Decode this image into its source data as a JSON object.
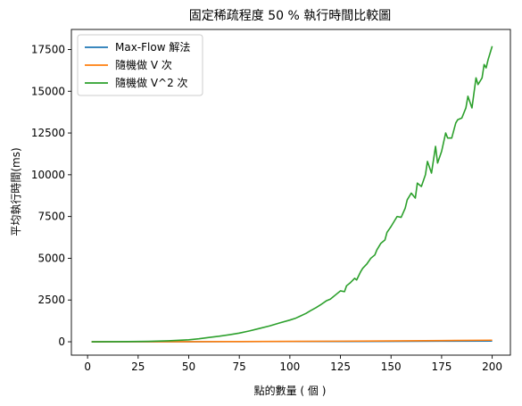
{
  "chart_data": {
    "type": "line",
    "title": "固定稀疏程度 50 % 執行時間比較圖",
    "xlabel": "點的數量 ( 個 )",
    "ylabel": "平均執行時間(ms)",
    "xlim": [
      -8,
      209
    ],
    "ylim": [
      -800,
      18700
    ],
    "xticks": [
      0,
      25,
      50,
      75,
      100,
      125,
      150,
      175,
      200
    ],
    "yticks": [
      0,
      2500,
      5000,
      7500,
      10000,
      12500,
      15000,
      17500
    ],
    "grid": false,
    "legend_position": "top-left",
    "series": [
      {
        "name": "Max-Flow 解法",
        "color": "#1f77b4",
        "x": [
          2,
          25,
          50,
          75,
          100,
          125,
          150,
          175,
          200
        ],
        "y": [
          0,
          2,
          5,
          9,
          14,
          20,
          27,
          35,
          44
        ]
      },
      {
        "name": "隨機做 V 次",
        "color": "#ff7f0e",
        "x": [
          2,
          25,
          50,
          75,
          100,
          125,
          150,
          175,
          200
        ],
        "y": [
          0,
          2,
          6,
          12,
          22,
          35,
          52,
          72,
          95
        ]
      },
      {
        "name": "隨機做 V^2 次",
        "color": "#2ca02c",
        "x": [
          2,
          10,
          20,
          30,
          40,
          50,
          55,
          60,
          65,
          70,
          75,
          80,
          85,
          90,
          95,
          100,
          103,
          105,
          108,
          110,
          113,
          115,
          118,
          120,
          123,
          125,
          127,
          128,
          130,
          132,
          133,
          135,
          136,
          138,
          140,
          142,
          143,
          145,
          147,
          148,
          150,
          152,
          153,
          155,
          157,
          158,
          160,
          162,
          163,
          165,
          167,
          168,
          170,
          172,
          173,
          175,
          177,
          178,
          180,
          182,
          183,
          185,
          187,
          188,
          190,
          192,
          193,
          195,
          196,
          197,
          198,
          199,
          200
        ],
        "y": [
          0,
          3,
          10,
          25,
          60,
          120,
          180,
          260,
          330,
          420,
          520,
          650,
          800,
          950,
          1130,
          1300,
          1420,
          1530,
          1700,
          1850,
          2050,
          2200,
          2450,
          2550,
          2850,
          3050,
          3000,
          3350,
          3550,
          3800,
          3700,
          4200,
          4400,
          4650,
          5000,
          5200,
          5500,
          5900,
          6100,
          6550,
          6900,
          7300,
          7500,
          7450,
          8000,
          8500,
          8900,
          8600,
          9500,
          9300,
          10000,
          10800,
          10100,
          11700,
          10700,
          11400,
          12500,
          12200,
          12200,
          13100,
          13300,
          13400,
          14000,
          14700,
          14000,
          15800,
          15400,
          15800,
          16600,
          16400,
          16900,
          17300,
          17700
        ]
      }
    ]
  }
}
